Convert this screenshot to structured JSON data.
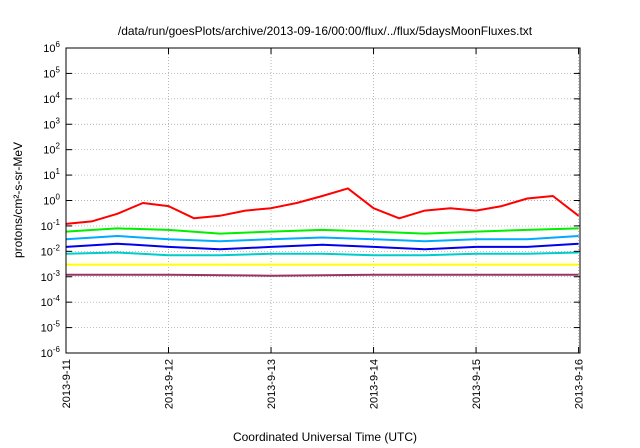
{
  "chart_data": {
    "type": "line",
    "title": "/data/run/goesPlots/archive/2013-09-16/00:00/flux/../flux/5daysMoonFluxes.txt",
    "xlabel": "Coordinated Universal Time (UTC)",
    "ylabel": "protons/cm²-s-sr-MeV",
    "y_scale": "log",
    "ylim": [
      1e-06,
      1000000.0
    ],
    "y_ticks": [
      {
        "value": 1e-06,
        "base": "10",
        "exp": "-6"
      },
      {
        "value": 1e-05,
        "base": "10",
        "exp": "-5"
      },
      {
        "value": 0.0001,
        "base": "10",
        "exp": "-4"
      },
      {
        "value": 0.001,
        "base": "10",
        "exp": "-3"
      },
      {
        "value": 0.01,
        "base": "10",
        "exp": "-2"
      },
      {
        "value": 0.1,
        "base": "10",
        "exp": "-1"
      },
      {
        "value": 1,
        "base": "10",
        "exp": "0"
      },
      {
        "value": 10.0,
        "base": "10",
        "exp": "1"
      },
      {
        "value": 100.0,
        "base": "10",
        "exp": "2"
      },
      {
        "value": 1000.0,
        "base": "10",
        "exp": "3"
      },
      {
        "value": 10000.0,
        "base": "10",
        "exp": "4"
      },
      {
        "value": 100000.0,
        "base": "10",
        "exp": "5"
      },
      {
        "value": 1000000.0,
        "base": "10",
        "exp": "6"
      }
    ],
    "xlim": [
      "2013-09-11 00:00",
      "2013-09-16 00:20"
    ],
    "x_ticks": [
      "2013-9-11",
      "2013-9-12",
      "2013-9-13",
      "2013-9-14",
      "2013-9-15",
      "2013-9-16"
    ],
    "grid": true,
    "series": [
      {
        "color": "#ff0000",
        "x": [
          "2013-09-11 00:00",
          "2013-09-11 06:00",
          "2013-09-11 12:00",
          "2013-09-11 18:00",
          "2013-09-12 00:00",
          "2013-09-12 06:00",
          "2013-09-12 12:00",
          "2013-09-12 18:00",
          "2013-09-13 00:00",
          "2013-09-13 06:00",
          "2013-09-13 12:00",
          "2013-09-13 18:00",
          "2013-09-14 00:00",
          "2013-09-14 06:00",
          "2013-09-14 12:00",
          "2013-09-14 18:00",
          "2013-09-15 00:00",
          "2013-09-15 06:00",
          "2013-09-15 12:00",
          "2013-09-15 18:00",
          "2013-09-16 00:00"
        ],
        "y": [
          0.12,
          0.15,
          0.3,
          0.8,
          0.6,
          0.2,
          0.25,
          0.4,
          0.5,
          0.8,
          1.5,
          3,
          0.5,
          0.2,
          0.4,
          0.5,
          0.4,
          0.6,
          1.2,
          1.5,
          0.25
        ]
      },
      {
        "color": "#00ee00",
        "x": [
          "2013-09-11 00:00",
          "2013-09-11 12:00",
          "2013-09-12 00:00",
          "2013-09-12 12:00",
          "2013-09-13 00:00",
          "2013-09-13 12:00",
          "2013-09-14 00:00",
          "2013-09-14 12:00",
          "2013-09-15 00:00",
          "2013-09-15 12:00",
          "2013-09-16 00:00"
        ],
        "y": [
          0.06,
          0.08,
          0.07,
          0.05,
          0.06,
          0.07,
          0.06,
          0.05,
          0.06,
          0.07,
          0.08
        ]
      },
      {
        "color": "#00aaff",
        "x": [
          "2013-09-11 00:00",
          "2013-09-11 12:00",
          "2013-09-12 00:00",
          "2013-09-12 12:00",
          "2013-09-13 00:00",
          "2013-09-13 12:00",
          "2013-09-14 00:00",
          "2013-09-14 12:00",
          "2013-09-15 00:00",
          "2013-09-15 12:00",
          "2013-09-16 00:00"
        ],
        "y": [
          0.03,
          0.04,
          0.03,
          0.025,
          0.03,
          0.035,
          0.03,
          0.025,
          0.03,
          0.03,
          0.04
        ]
      },
      {
        "color": "#0000ee",
        "x": [
          "2013-09-11 00:00",
          "2013-09-11 12:00",
          "2013-09-12 00:00",
          "2013-09-12 12:00",
          "2013-09-13 00:00",
          "2013-09-13 12:00",
          "2013-09-14 00:00",
          "2013-09-14 12:00",
          "2013-09-15 00:00",
          "2013-09-15 12:00",
          "2013-09-16 00:00"
        ],
        "y": [
          0.015,
          0.02,
          0.015,
          0.012,
          0.015,
          0.018,
          0.015,
          0.012,
          0.015,
          0.015,
          0.02
        ]
      },
      {
        "color": "#00cccc",
        "x": [
          "2013-09-11 00:00",
          "2013-09-11 12:00",
          "2013-09-12 00:00",
          "2013-09-12 12:00",
          "2013-09-13 00:00",
          "2013-09-13 12:00",
          "2013-09-14 00:00",
          "2013-09-14 12:00",
          "2013-09-15 00:00",
          "2013-09-15 12:00",
          "2013-09-16 00:00"
        ],
        "y": [
          0.008,
          0.009,
          0.007,
          0.007,
          0.008,
          0.008,
          0.007,
          0.007,
          0.008,
          0.008,
          0.009
        ]
      },
      {
        "color": "#ffff00",
        "x": [
          "2013-09-11 00:00",
          "2013-09-12 00:00",
          "2013-09-13 00:00",
          "2013-09-14 00:00",
          "2013-09-15 00:00",
          "2013-09-16 00:00"
        ],
        "y": [
          0.003,
          0.003,
          0.003,
          0.003,
          0.003,
          0.003
        ]
      },
      {
        "color": "#993366",
        "x": [
          "2013-09-11 00:00",
          "2013-09-12 00:00",
          "2013-09-13 00:00",
          "2013-09-14 00:00",
          "2013-09-15 00:00",
          "2013-09-16 00:00"
        ],
        "y": [
          0.0012,
          0.0012,
          0.0011,
          0.0012,
          0.0012,
          0.0012
        ]
      }
    ]
  }
}
